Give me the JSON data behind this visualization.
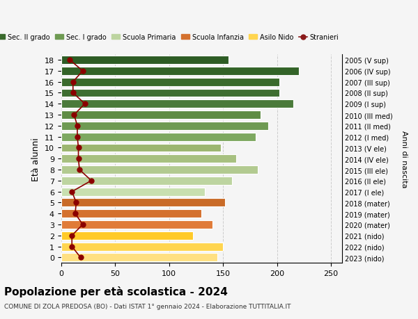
{
  "ages": [
    0,
    1,
    2,
    3,
    4,
    5,
    6,
    7,
    8,
    9,
    10,
    11,
    12,
    13,
    14,
    15,
    16,
    17,
    18
  ],
  "anni_nascita": [
    "2023 (nido)",
    "2022 (nido)",
    "2021 (nido)",
    "2020 (mater)",
    "2019 (mater)",
    "2018 (mater)",
    "2017 (I ele)",
    "2016 (II ele)",
    "2015 (III ele)",
    "2014 (IV ele)",
    "2013 (V ele)",
    "2012 (I med)",
    "2011 (II med)",
    "2010 (III med)",
    "2009 (I sup)",
    "2008 (II sup)",
    "2007 (III sup)",
    "2006 (IV sup)",
    "2005 (V sup)"
  ],
  "bar_values": [
    145,
    150,
    122,
    140,
    130,
    152,
    133,
    158,
    182,
    162,
    148,
    180,
    192,
    185,
    215,
    202,
    202,
    220,
    155
  ],
  "stranieri": [
    18,
    10,
    10,
    20,
    13,
    14,
    10,
    28,
    17,
    16,
    16,
    15,
    15,
    12,
    22,
    11,
    11,
    20,
    8
  ],
  "bar_colors": [
    "#FFE082",
    "#FFD54F",
    "#FFCA28",
    "#E07B39",
    "#D4712E",
    "#C96B28",
    "#C8DFB0",
    "#BDD4A0",
    "#B2CA90",
    "#A7C080",
    "#9CB670",
    "#7DA860",
    "#6E9A52",
    "#5F8C44",
    "#4A7A3A",
    "#3E6E30",
    "#3A6A2C",
    "#336328",
    "#2D5C24"
  ],
  "legend_labels": [
    "Sec. II grado",
    "Sec. I grado",
    "Scuola Primaria",
    "Scuola Infanzia",
    "Asilo Nido",
    "Stranieri"
  ],
  "legend_colors": [
    "#3A6A2C",
    "#6E9A52",
    "#BDD4A0",
    "#D4712E",
    "#FFD54F",
    "#8B1A1A"
  ],
  "xlabel": "",
  "ylabel": "Età alunni",
  "ylabel2": "Anni di nascita",
  "title": "Popolazione per età scolastica - 2024",
  "subtitle": "COMUNE DI ZOLA PREDOSA (BO) - Dati ISTAT 1° gennaio 2024 - Elaborazione TUTTITALIA.IT",
  "xlim": [
    0,
    260
  ],
  "background_color": "#f5f5f5",
  "bar_height": 0.75,
  "grid_color": "#cccccc"
}
